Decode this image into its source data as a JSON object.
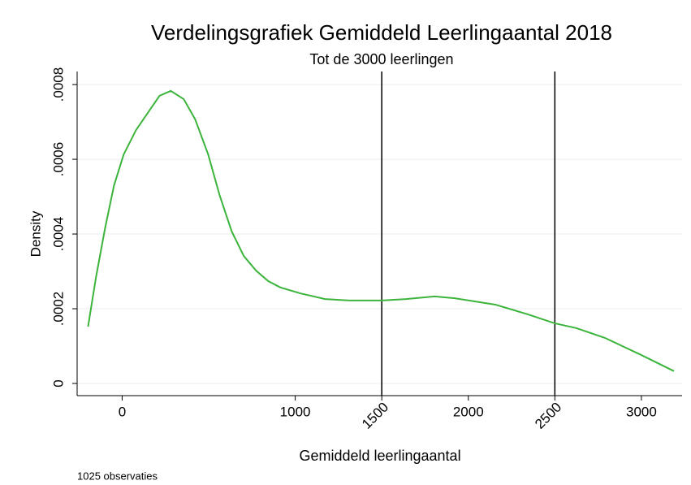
{
  "chart_data": {
    "type": "line",
    "title": "Verdelingsgrafiek Gemiddeld Leerlingaantal 2018",
    "subtitle": "Tot de 3000 leerlingen",
    "x_label": "Gemiddeld leerlingaantal",
    "y_label": "Density",
    "note": "1025 observaties",
    "x": [
      -197,
      -150,
      -98,
      -47,
      9,
      80,
      145,
      216,
      281,
      356,
      422,
      497,
      563,
      633,
      703,
      774,
      844,
      914,
      1031,
      1172,
      1313,
      1500,
      1641,
      1805,
      1922,
      2156,
      2344,
      2499,
      2625,
      2789,
      3000,
      3188
    ],
    "series": [
      {
        "name": "Density",
        "color": "#3cb43c",
        "values": [
          0.000152,
          0.000287,
          0.000417,
          0.00053,
          0.000613,
          0.000678,
          0.000722,
          0.00077,
          0.000783,
          0.000761,
          0.000707,
          0.000613,
          0.000504,
          0.000407,
          0.000341,
          0.000302,
          0.000274,
          0.000257,
          0.000241,
          0.000226,
          0.000222,
          0.000222,
          0.000226,
          0.000233,
          0.000228,
          0.000211,
          0.000185,
          0.000161,
          0.000148,
          0.000122,
          7.6e-05,
          3.3e-05
        ]
      }
    ],
    "xlim": [
      -260,
      3235
    ],
    "ylim": [
      -3.26e-05,
      0.000835
    ],
    "xticks": [
      0,
      1000,
      2000,
      3000
    ],
    "yticks": [
      0,
      {
        "value": 0.0002,
        "label": ".0002"
      },
      {
        "value": 0.0004,
        "label": ".0004"
      },
      {
        "value": 0.0006,
        "label": ".0006"
      },
      {
        "value": 0.0008,
        "label": ".0008"
      }
    ],
    "reference_lines": [
      1500,
      2500
    ],
    "grid": true
  }
}
